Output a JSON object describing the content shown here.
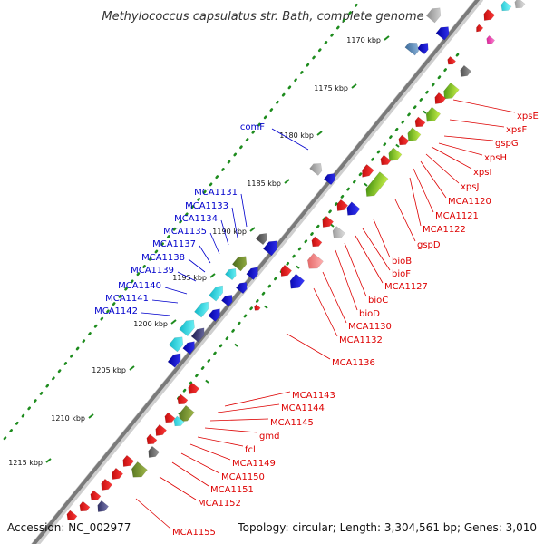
{
  "title": "Methylococcus capsulatus str. Bath, complete genome",
  "footer": {
    "accession": "Accession: NC_002977",
    "summary": "Topology: circular; Length: 3,304,561 bp; Genes: 3,010"
  },
  "colors": {
    "forward_label": "#0000cc",
    "reverse_label": "#dd0000",
    "backbone": "#8a8a8a",
    "tick": "#1e8c1e"
  },
  "kbp_ticks": [
    "1170 kbp",
    "1175 kbp",
    "1180 kbp",
    "1185 kbp",
    "1190 kbp",
    "1195 kbp",
    "1200 kbp",
    "1205 kbp",
    "1210 kbp",
    "1215 kbp"
  ],
  "forward_labels": [
    "comF",
    "MCA1131",
    "MCA1133",
    "MCA1134",
    "MCA1135",
    "MCA1137",
    "MCA1138",
    "MCA1139",
    "MCA1140",
    "MCA1141",
    "MCA1142"
  ],
  "reverse_labels": [
    "xpsE",
    "xpsF",
    "gspG",
    "xpsH",
    "xpsI",
    "xpsJ",
    "MCA1120",
    "MCA1121",
    "MCA1122",
    "gspD",
    "bioB",
    "bioF",
    "MCA1127",
    "bioC",
    "bioD",
    "MCA1130",
    "MCA1132",
    "MCA1136",
    "MCA1143",
    "MCA1144",
    "MCA1145",
    "gmd",
    "fcl",
    "MCA1149",
    "MCA1150",
    "MCA1151",
    "MCA1152",
    "MCA1155"
  ]
}
